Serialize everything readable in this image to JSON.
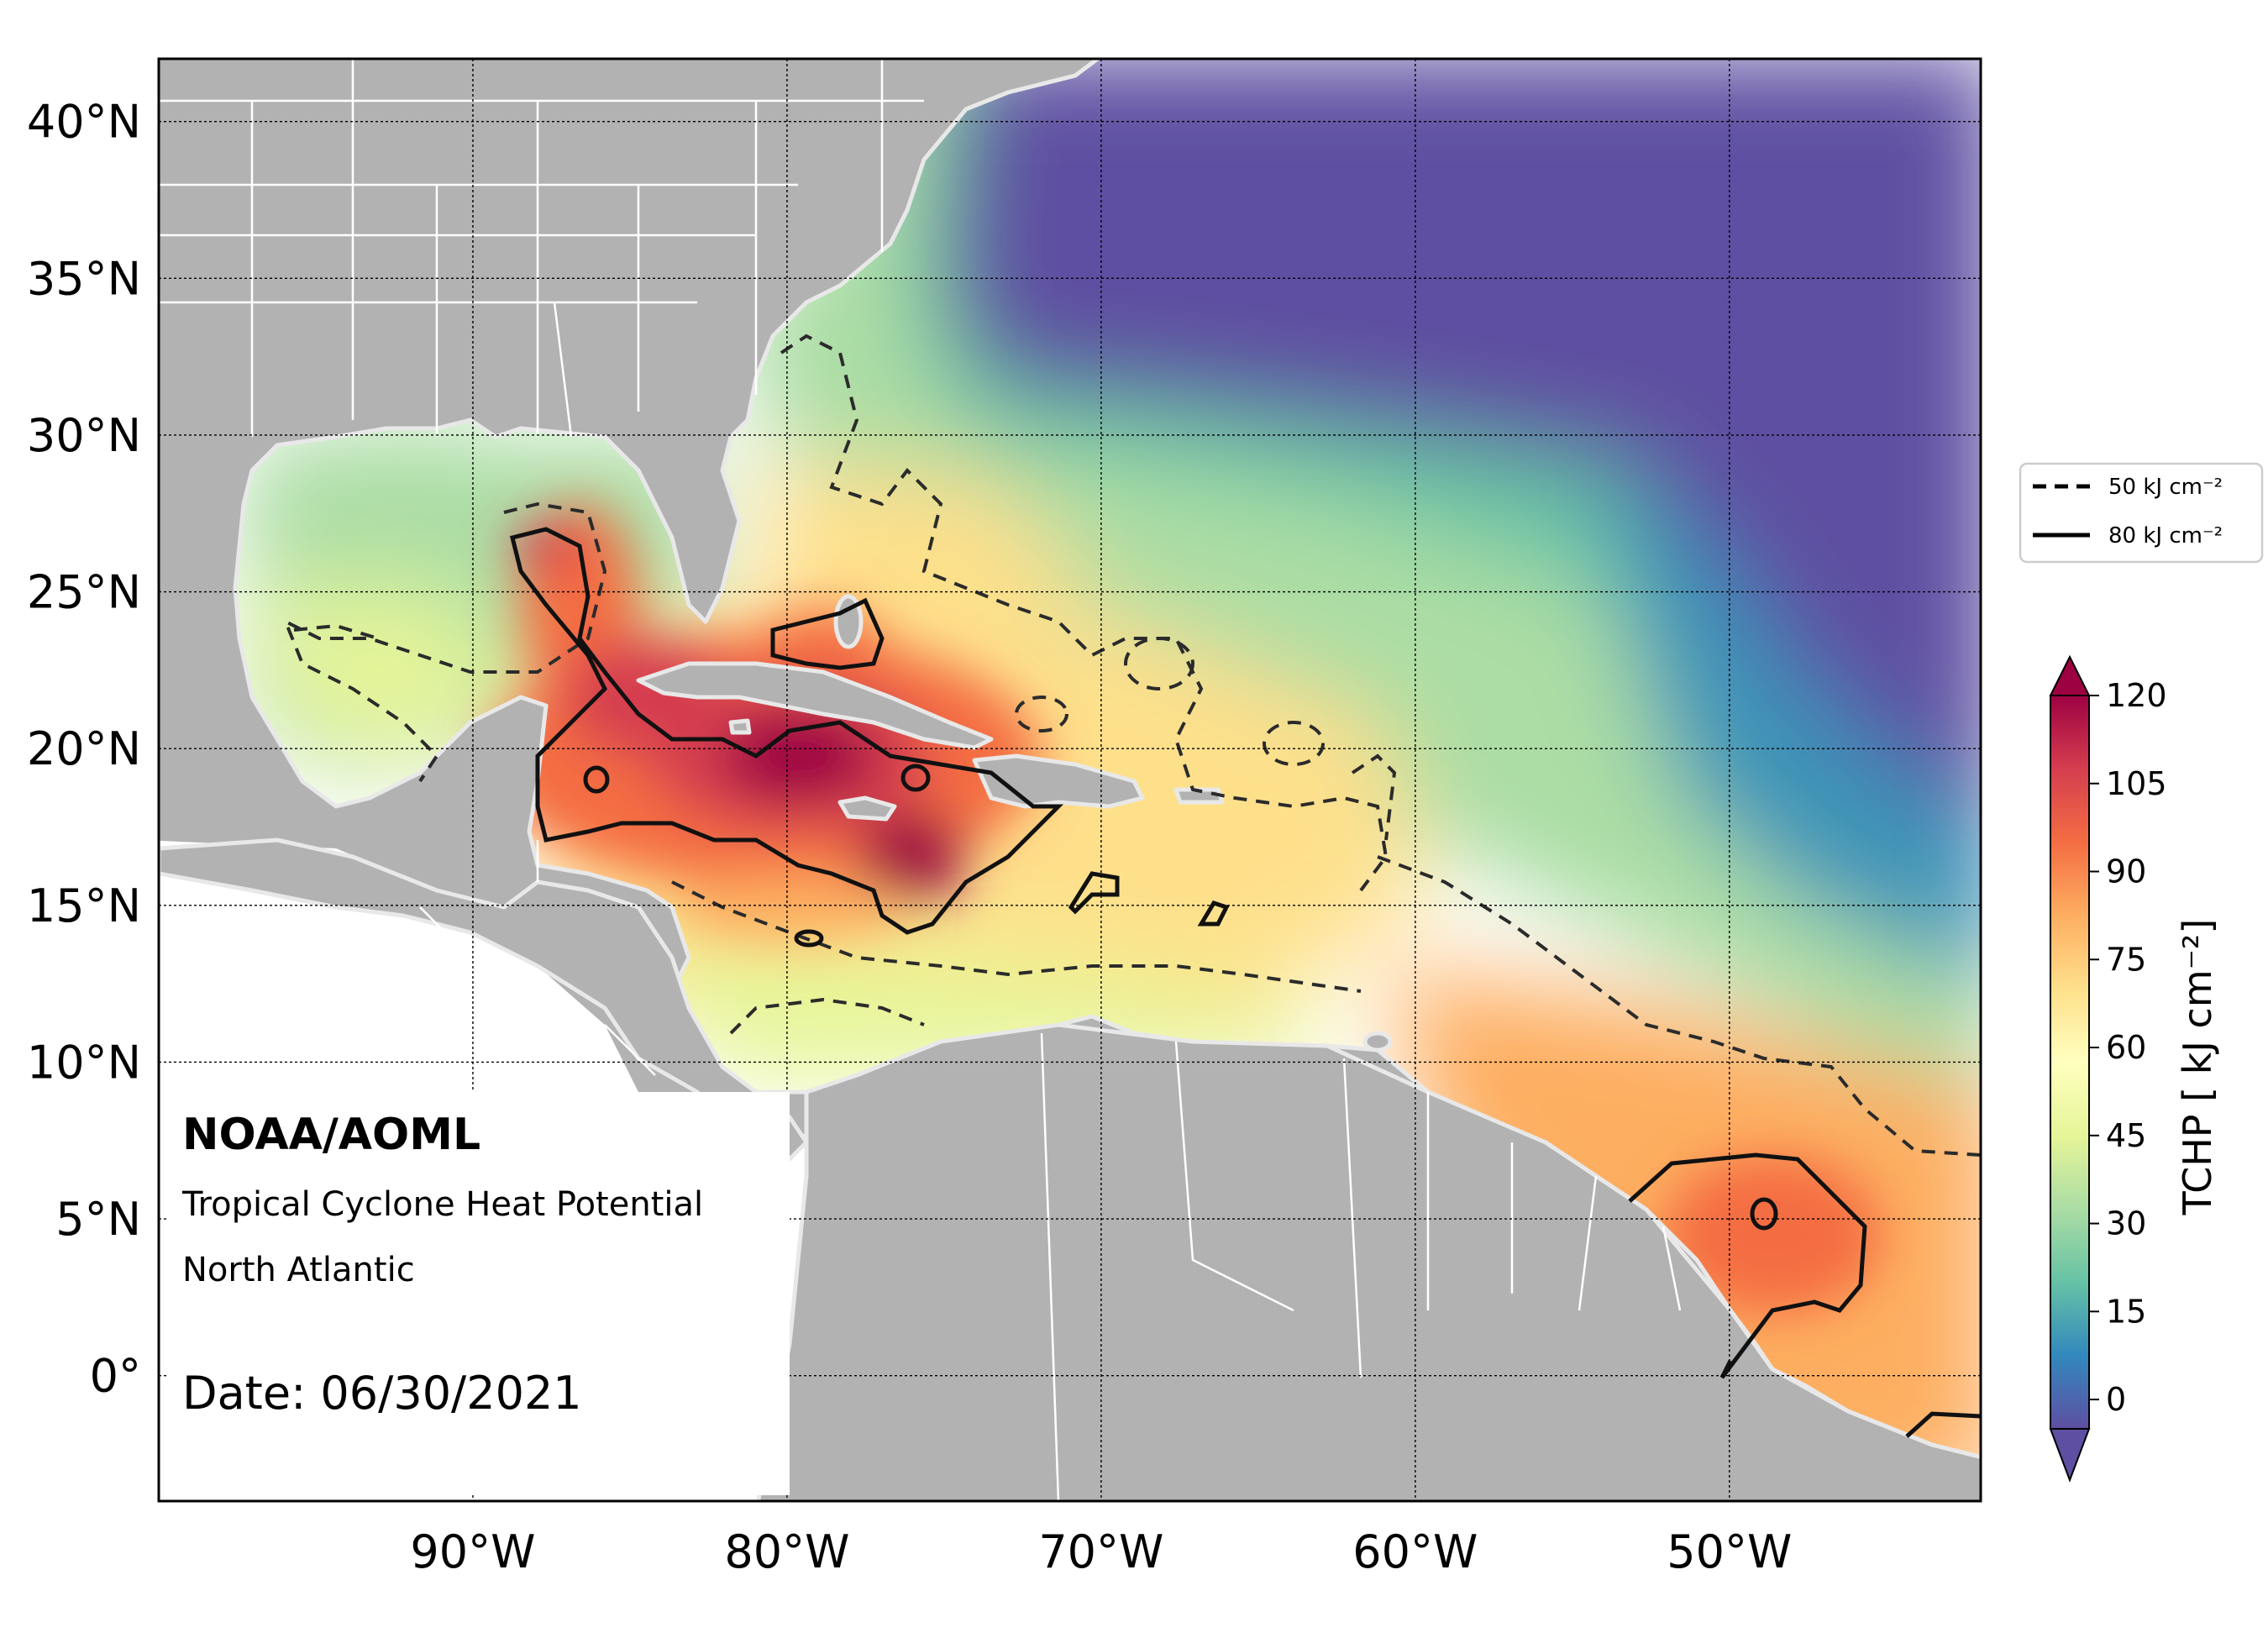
{
  "map": {
    "projection": "PlateCarree",
    "lon_range": [
      -100,
      -42
    ],
    "lat_range": [
      -4,
      42
    ],
    "grid_lon": [
      -90,
      -80,
      -70,
      -60,
      -50
    ],
    "grid_lat": [
      0,
      5,
      10,
      15,
      20,
      25,
      30,
      35,
      40
    ],
    "lon_tick_labels": [
      "90°W",
      "80°W",
      "70°W",
      "60°W",
      "50°W"
    ],
    "lat_tick_labels": [
      "0°",
      "5°N",
      "10°N",
      "15°N",
      "20°N",
      "25°N",
      "30°N",
      "35°N",
      "40°N"
    ],
    "colors": {
      "land": "#b2b2b2",
      "borders": "#ffffff",
      "coastline": "#e8e8e8",
      "grid": "#000000"
    }
  },
  "info": {
    "org": "NOAA/AOML",
    "product": "Tropical Cyclone Heat Potential",
    "region": "North Atlantic",
    "date": "Date: 06/30/2021"
  },
  "legend": {
    "dashed_label": "50 kJ cm⁻²",
    "solid_label": "80 kJ cm⁻²"
  },
  "colorbar": {
    "label": "TCHP [ kJ cm⁻²]",
    "tick_labels": [
      "0",
      "15",
      "30",
      "45",
      "60",
      "75",
      "90",
      "105",
      "120"
    ],
    "min": -5,
    "max": 120,
    "extend": "both",
    "scheme": "Spectral_r",
    "colors": [
      "#5e4fa2",
      "#3288bd",
      "#66c2a5",
      "#abdda4",
      "#e6f598",
      "#ffffbf",
      "#fee08b",
      "#fdae61",
      "#f46d43",
      "#d53e4f",
      "#9e0142"
    ]
  },
  "chart_data": {
    "type": "heatmap",
    "field": "TCHP",
    "units": "kJ cm-2",
    "contours": [
      50,
      80
    ],
    "hotspots": [
      {
        "lon": -79,
        "lat": 19.5,
        "value": 120
      },
      {
        "lon": -84,
        "lat": 21,
        "value": 112
      },
      {
        "lon": -86.5,
        "lat": 25.8,
        "value": 108
      },
      {
        "lon": -82,
        "lat": 19,
        "value": 115
      },
      {
        "lon": -76,
        "lat": 16.3,
        "value": 115
      },
      {
        "lon": -86.5,
        "lat": 19.2,
        "value": 100
      },
      {
        "lon": -77.5,
        "lat": 23.5,
        "value": 90
      },
      {
        "lon": -67.5,
        "lat": 15.2,
        "value": 85
      },
      {
        "lon": -48.5,
        "lat": 5.5,
        "value": 90
      },
      {
        "lon": -54,
        "lat": 10,
        "value": 75
      }
    ]
  }
}
